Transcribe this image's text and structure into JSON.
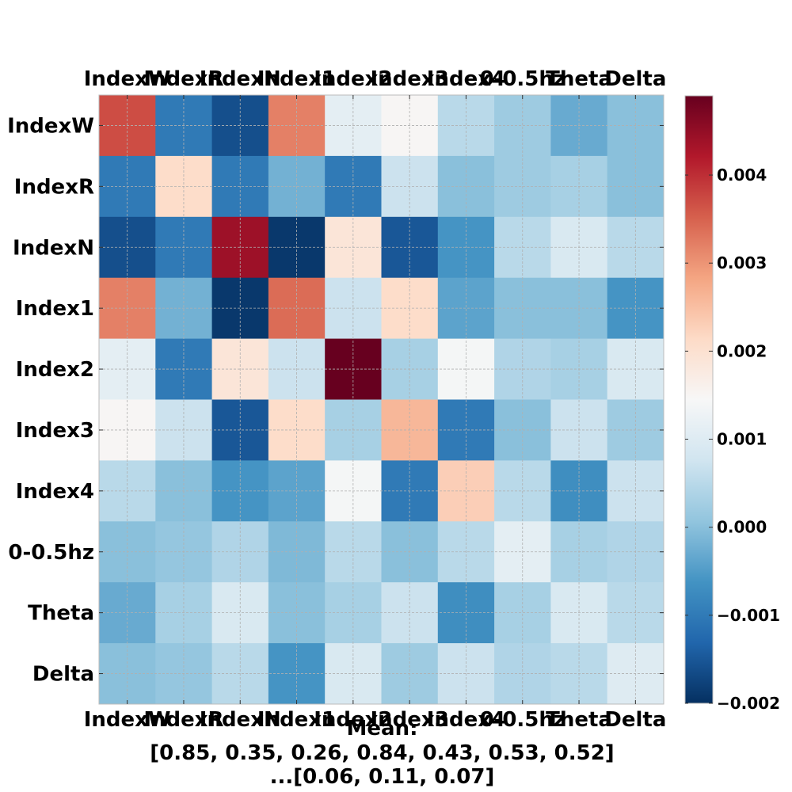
{
  "chart_data": {
    "type": "heatmap",
    "labels": [
      "IndexW",
      "IndexR",
      "IndexN",
      "Index1",
      "Index2",
      "Index3",
      "Index4",
      "0-0.5hz",
      "Theta",
      "Delta"
    ],
    "values": [
      [
        0.0037,
        -0.001,
        -0.0016,
        0.0032,
        0.0011,
        0.0015,
        0.0005,
        0.0002,
        -0.0003,
        0.0
      ],
      [
        -0.001,
        0.0021,
        -0.001,
        -0.0002,
        -0.001,
        0.0007,
        0.0,
        0.0002,
        0.0003,
        0.0
      ],
      [
        -0.0016,
        -0.001,
        0.0044,
        -0.0019,
        0.0019,
        -0.0015,
        -0.0006,
        0.0005,
        0.0009,
        0.0005
      ],
      [
        0.0032,
        -0.0002,
        -0.0019,
        0.0034,
        0.0007,
        0.0021,
        -0.0004,
        0.0,
        0.0,
        -0.0006
      ],
      [
        0.0011,
        -0.001,
        0.0019,
        0.0007,
        0.0049,
        0.0003,
        0.0014,
        0.0004,
        0.0003,
        0.0009
      ],
      [
        0.0015,
        0.0007,
        -0.0015,
        0.0021,
        0.0003,
        0.0026,
        -0.001,
        0.0,
        0.0007,
        0.0002
      ],
      [
        0.0005,
        0.0,
        -0.0006,
        -0.0004,
        0.0014,
        -0.001,
        0.0023,
        0.0005,
        -0.0007,
        0.0007
      ],
      [
        0.0,
        0.0001,
        0.0004,
        -0.0001,
        0.0005,
        0.0,
        0.0005,
        0.0011,
        0.0003,
        0.0004
      ],
      [
        -0.0003,
        0.0003,
        0.0009,
        0.0,
        0.0003,
        0.0007,
        -0.0007,
        0.0003,
        0.0009,
        0.0005
      ],
      [
        0.0,
        0.0001,
        0.0005,
        -0.0006,
        0.0009,
        0.0002,
        0.0007,
        0.0004,
        0.0005,
        0.001
      ]
    ],
    "colorbar": {
      "colormap": "RdBu_r",
      "range": [
        -0.002,
        0.0049
      ],
      "ticks": [
        -0.002,
        -0.001,
        0.0,
        0.001,
        0.002,
        0.003,
        0.004
      ],
      "tick_labels": [
        "−0.002",
        "−0.001",
        "0.000",
        "0.001",
        "0.002",
        "0.003",
        "0.004"
      ]
    },
    "grid": true,
    "xlabel_lines": [
      "Mean:",
      "[0.85, 0.35, 0.26, 0.84, 0.43, 0.53, 0.52]",
      "...[0.06, 0.11, 0.07]"
    ]
  }
}
